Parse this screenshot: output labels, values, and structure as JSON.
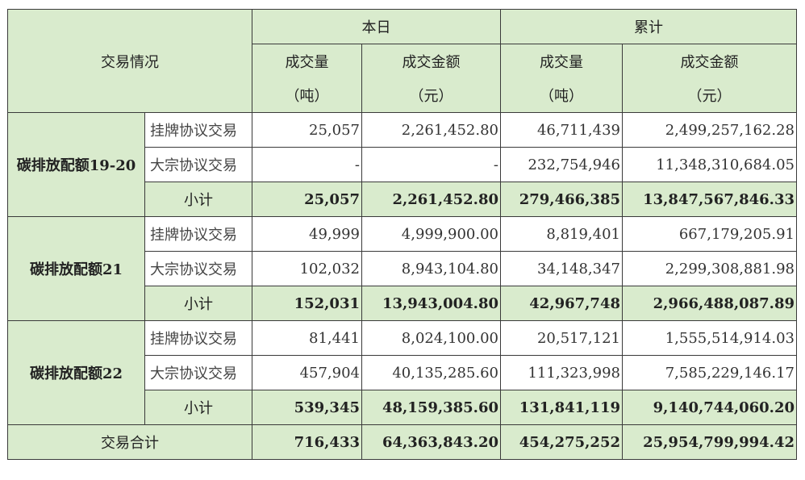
{
  "header": {
    "row_label": "交易情况",
    "group_today": "本日",
    "group_total": "累计",
    "vol_label": "成交量",
    "vol_unit": "（吨）",
    "amt_label": "成交金额",
    "amt_unit": "（元）"
  },
  "groups": [
    {
      "name": "碳排放配额19-20",
      "rows": [
        {
          "type": "挂牌协议交易",
          "d_vol": "25,057",
          "d_amt": "2,261,452.80",
          "t_vol": "46,711,439",
          "t_amt": "2,499,257,162.28"
        },
        {
          "type": "大宗协议交易",
          "d_vol": "-",
          "d_amt": "-",
          "t_vol": "232,754,946",
          "t_amt": "11,348,310,684.05"
        }
      ],
      "subtotal": {
        "label": "小计",
        "d_vol": "25,057",
        "d_amt": "2,261,452.80",
        "t_vol": "279,466,385",
        "t_amt": "13,847,567,846.33"
      }
    },
    {
      "name": "碳排放配额21",
      "rows": [
        {
          "type": "挂牌协议交易",
          "d_vol": "49,999",
          "d_amt": "4,999,900.00",
          "t_vol": "8,819,401",
          "t_amt": "667,179,205.91"
        },
        {
          "type": "大宗协议交易",
          "d_vol": "102,032",
          "d_amt": "8,943,104.80",
          "t_vol": "34,148,347",
          "t_amt": "2,299,308,881.98"
        }
      ],
      "subtotal": {
        "label": "小计",
        "d_vol": "152,031",
        "d_amt": "13,943,004.80",
        "t_vol": "42,967,748",
        "t_amt": "2,966,488,087.89"
      }
    },
    {
      "name": "碳排放配额22",
      "rows": [
        {
          "type": "挂牌协议交易",
          "d_vol": "81,441",
          "d_amt": "8,024,100.00",
          "t_vol": "20,517,121",
          "t_amt": "1,555,514,914.03"
        },
        {
          "type": "大宗协议交易",
          "d_vol": "457,904",
          "d_amt": "40,135,285.60",
          "t_vol": "111,323,998",
          "t_amt": "7,585,229,146.17"
        }
      ],
      "subtotal": {
        "label": "小计",
        "d_vol": "539,345",
        "d_amt": "48,159,385.60",
        "t_vol": "131,841,119",
        "t_amt": "9,140,744,060.20"
      }
    }
  ],
  "total": {
    "label": "交易合计",
    "d_vol": "716,433",
    "d_amt": "64,363,843.20",
    "t_vol": "454,275,252",
    "t_amt": "25,954,799,994.42"
  },
  "colors": {
    "header_bg": "#d9ebcd",
    "border": "#3a3a3a"
  }
}
